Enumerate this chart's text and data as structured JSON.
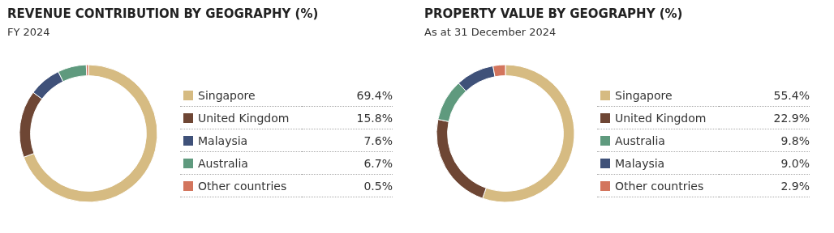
{
  "chart_data": [
    {
      "type": "donut",
      "title": "REVENUE CONTRIBUTION BY GEOGRAPHY (%)",
      "subtitle": "FY 2024",
      "categories": [
        "Singapore",
        "United Kingdom",
        "Malaysia",
        "Australia",
        "Other countries"
      ],
      "values": [
        69.4,
        15.8,
        7.6,
        6.7,
        0.5
      ],
      "value_labels": [
        "69.4%",
        "15.8%",
        "7.6%",
        "6.7%",
        "0.5%"
      ],
      "colors": [
        "#d6bb82",
        "#6e4634",
        "#3f5179",
        "#5f9a7e",
        "#d3755d"
      ],
      "legend": "right"
    },
    {
      "type": "donut",
      "title": "PROPERTY VALUE BY GEOGRAPHY (%)",
      "subtitle": "As at 31 December 2024",
      "categories": [
        "Singapore",
        "United Kingdom",
        "Australia",
        "Malaysia",
        "Other countries"
      ],
      "values": [
        55.4,
        22.9,
        9.8,
        9.0,
        2.9
      ],
      "value_labels": [
        "55.4%",
        "22.9%",
        "9.8%",
        "9.0%",
        "2.9%"
      ],
      "colors": [
        "#d6bb82",
        "#6e4634",
        "#5f9a7e",
        "#3f5179",
        "#d3755d"
      ],
      "legend": "right"
    }
  ]
}
